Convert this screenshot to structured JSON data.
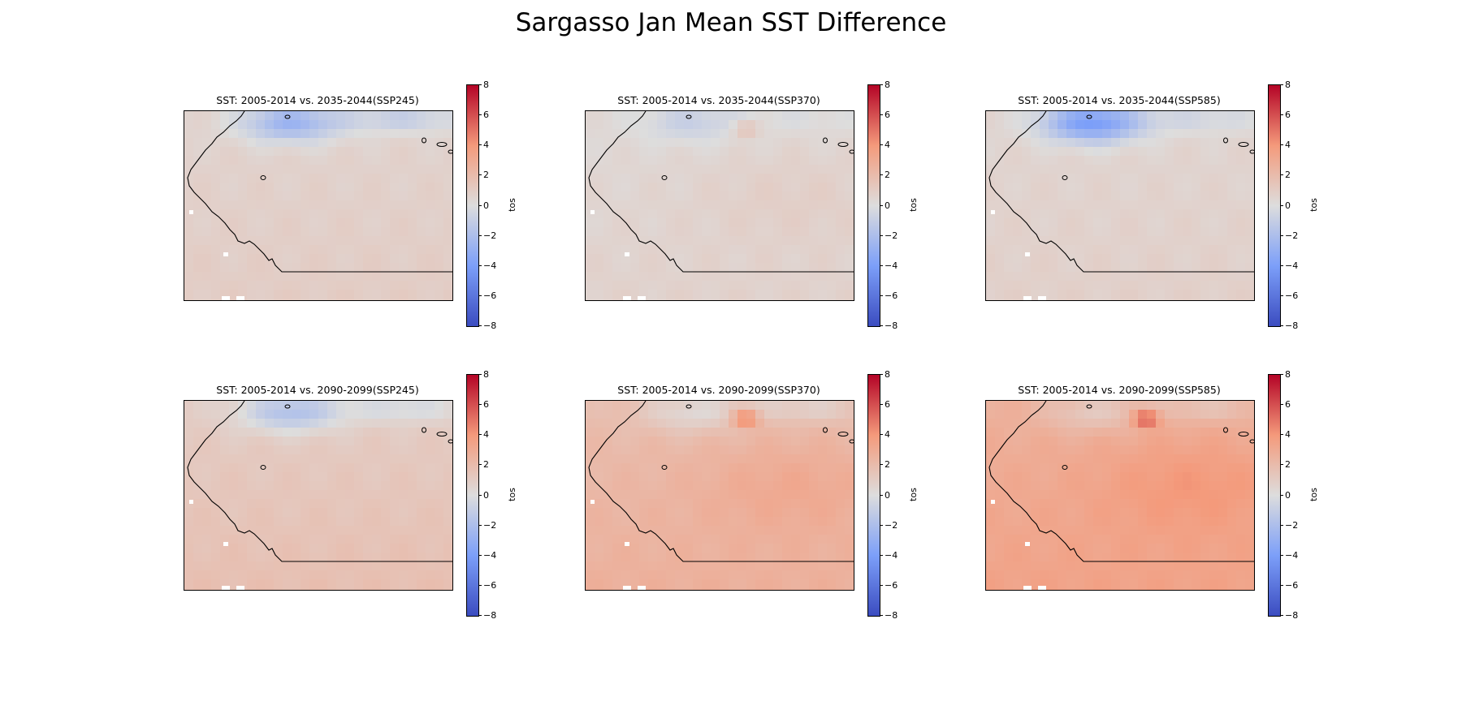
{
  "suptitle": "Sargasso Jan Mean SST Difference",
  "chart_data": [
    {
      "type": "heatmap",
      "title": "SST: 2005-2014 vs. 2035-2044(SSP245)",
      "colorbar_label": "tos",
      "colorbar_ticks": [
        "8",
        "6",
        "4",
        "2",
        "0",
        "−2",
        "−4",
        "−6",
        "−8"
      ],
      "vmin": -8,
      "vmax": 8,
      "colormap": "coolwarm",
      "field": {
        "base": 0.6,
        "nw_cool": -3.2,
        "ne_cool": -1.6,
        "south_warm": 0.4,
        "hot_spot": 0
      }
    },
    {
      "type": "heatmap",
      "title": "SST: 2005-2014 vs. 2035-2044(SSP370)",
      "colorbar_label": "tos",
      "colorbar_ticks": [
        "8",
        "6",
        "4",
        "2",
        "0",
        "−2",
        "−4",
        "−6",
        "−8"
      ],
      "vmin": -8,
      "vmax": 8,
      "colormap": "coolwarm",
      "field": {
        "base": 0.3,
        "nw_cool": -1.2,
        "ne_cool": -0.4,
        "south_warm": 0.4,
        "hot_spot": 1.6
      }
    },
    {
      "type": "heatmap",
      "title": "SST: 2005-2014 vs. 2035-2044(SSP585)",
      "colorbar_label": "tos",
      "colorbar_ticks": [
        "8",
        "6",
        "4",
        "2",
        "0",
        "−2",
        "−4",
        "−6",
        "−8"
      ],
      "vmin": -8,
      "vmax": 8,
      "colormap": "coolwarm",
      "field": {
        "base": 0.5,
        "nw_cool": -4.6,
        "ne_cool": -1.0,
        "south_warm": 0.3,
        "hot_spot": 0
      }
    },
    {
      "type": "heatmap",
      "title": "SST: 2005-2014 vs. 2090-2099(SSP245)",
      "colorbar_label": "tos",
      "colorbar_ticks": [
        "8",
        "6",
        "4",
        "2",
        "0",
        "−2",
        "−4",
        "−6",
        "−8"
      ],
      "vmin": -8,
      "vmax": 8,
      "colormap": "coolwarm",
      "field": {
        "base": 1.0,
        "nw_cool": -2.8,
        "ne_cool": -1.4,
        "south_warm": 0.8,
        "hot_spot": 0
      }
    },
    {
      "type": "heatmap",
      "title": "SST: 2005-2014 vs. 2090-2099(SSP370)",
      "colorbar_label": "tos",
      "colorbar_ticks": [
        "8",
        "6",
        "4",
        "2",
        "0",
        "−2",
        "−4",
        "−6",
        "−8"
      ],
      "vmin": -8,
      "vmax": 8,
      "colormap": "coolwarm",
      "field": {
        "base": 1.9,
        "nw_cool": -1.6,
        "ne_cool": -1.2,
        "south_warm": 0.8,
        "hot_spot": 3.4
      }
    },
    {
      "type": "heatmap",
      "title": "SST: 2005-2014 vs. 2090-2099(SSP585)",
      "colorbar_label": "tos",
      "colorbar_ticks": [
        "8",
        "6",
        "4",
        "2",
        "0",
        "−2",
        "−4",
        "−6",
        "−8"
      ],
      "vmin": -8,
      "vmax": 8,
      "colormap": "coolwarm",
      "field": {
        "base": 2.7,
        "nw_cool": -1.5,
        "ne_cool": -1.2,
        "south_warm": 0.8,
        "hot_spot": 3.8
      }
    }
  ]
}
